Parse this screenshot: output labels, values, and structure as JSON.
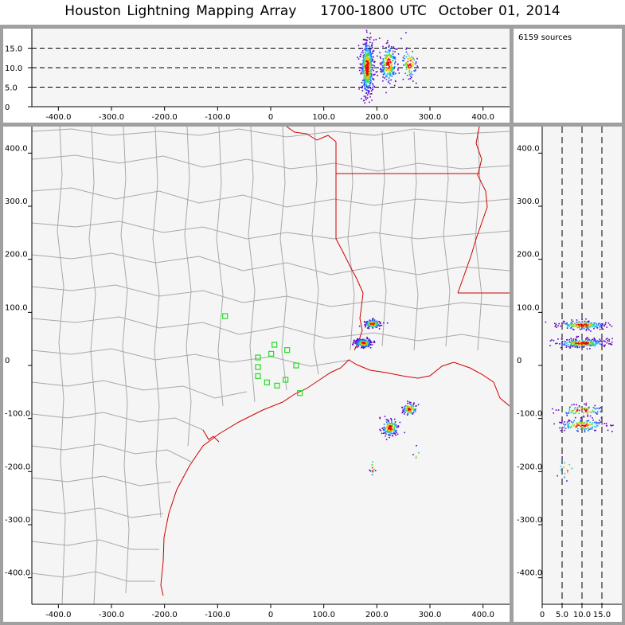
{
  "title": "Houston Lightning Mapping Array    1700-1800 UTC  October 01, 2014",
  "source_count_label": "6159 sources",
  "colors": {
    "border": "#a0a0a0",
    "panel_bg": "#f5f5f5",
    "county": "#a8a8a8",
    "coast_state": "#d00000",
    "station": "#22dd22"
  },
  "chart_data": [
    {
      "type": "scatter",
      "panel": "altitude-vs-east-west",
      "xlim": [
        -450,
        450
      ],
      "ylim": [
        0,
        20
      ],
      "x_ticks": [
        "-400.0",
        "-300.0",
        "-200.0",
        "-100.0",
        "0",
        "100.0",
        "200.0",
        "300.0",
        "400.0"
      ],
      "y_ticks": [
        "0",
        "5.0",
        "10.0",
        "15.0"
      ],
      "dashed_lines_at": [
        5,
        10,
        15
      ],
      "clusters": [
        {
          "x": 182,
          "z": 10,
          "sx": 6,
          "sz": 3.5,
          "n": 520
        },
        {
          "x": 222,
          "z": 11,
          "sx": 8,
          "sz": 2.5,
          "n": 220
        },
        {
          "x": 262,
          "z": 11,
          "sx": 8,
          "sz": 2,
          "n": 90
        }
      ]
    },
    {
      "type": "scatter",
      "panel": "plan-view-map",
      "xlim": [
        -450,
        450
      ],
      "ylim": [
        -450,
        450
      ],
      "x_ticks": [
        "-400.0",
        "-300.0",
        "-200.0",
        "-100.0",
        "0",
        "100.0",
        "200.0",
        "300.0",
        "400.0"
      ],
      "y_ticks": [
        "-400.0",
        "-300.0",
        "-200.0",
        "-100.0",
        "0",
        "100.0",
        "200.0",
        "300.0",
        "400.0"
      ],
      "clusters": [
        {
          "x": 175,
          "y": 42,
          "sx": 8,
          "sy": 4,
          "n": 220
        },
        {
          "x": 192,
          "y": 78,
          "sx": 8,
          "sy": 4,
          "n": 150
        },
        {
          "x": 225,
          "y": -117,
          "sx": 8,
          "sy": 8,
          "n": 160
        },
        {
          "x": 262,
          "y": -82,
          "sx": 7,
          "sy": 6,
          "n": 90
        },
        {
          "x": 192,
          "y": -195,
          "sx": 3,
          "sy": 10,
          "n": 14
        },
        {
          "x": 276,
          "y": -168,
          "sx": 3,
          "sy": 6,
          "n": 5
        }
      ],
      "stations": [
        {
          "x": -86,
          "y": 93
        },
        {
          "x": -24,
          "y": 15
        },
        {
          "x": -24,
          "y": -20
        },
        {
          "x": -24,
          "y": -3
        },
        {
          "x": -7,
          "y": -32
        },
        {
          "x": 1,
          "y": 22
        },
        {
          "x": 7,
          "y": 39
        },
        {
          "x": 12,
          "y": -38
        },
        {
          "x": 28,
          "y": -27
        },
        {
          "x": 31,
          "y": 29
        },
        {
          "x": 48,
          "y": 0
        },
        {
          "x": 55,
          "y": -52
        }
      ]
    },
    {
      "type": "scatter",
      "panel": "north-south-vs-altitude",
      "xlim": [
        0,
        20
      ],
      "ylim": [
        -450,
        450
      ],
      "x_ticks": [
        "0",
        "5.0",
        "10.0",
        "15.0"
      ],
      "y_ticks": [
        "-400.0",
        "-300.0",
        "-200.0",
        "-100.0",
        "0",
        "100.0",
        "200.0",
        "300.0",
        "400.0"
      ],
      "dashed_lines_at": [
        5,
        10,
        15
      ],
      "clusters": [
        {
          "z": 10,
          "y": 42,
          "sz": 3,
          "sy": 4,
          "n": 260
        },
        {
          "z": 10,
          "y": 76,
          "sz": 3,
          "sy": 4,
          "n": 180
        },
        {
          "z": 10,
          "y": -113,
          "sz": 3,
          "sy": 6,
          "n": 150
        },
        {
          "z": 10,
          "y": -85,
          "sz": 3,
          "sy": 5,
          "n": 90
        },
        {
          "z": 6,
          "y": -195,
          "sz": 1.2,
          "sy": 10,
          "n": 14
        }
      ]
    }
  ]
}
